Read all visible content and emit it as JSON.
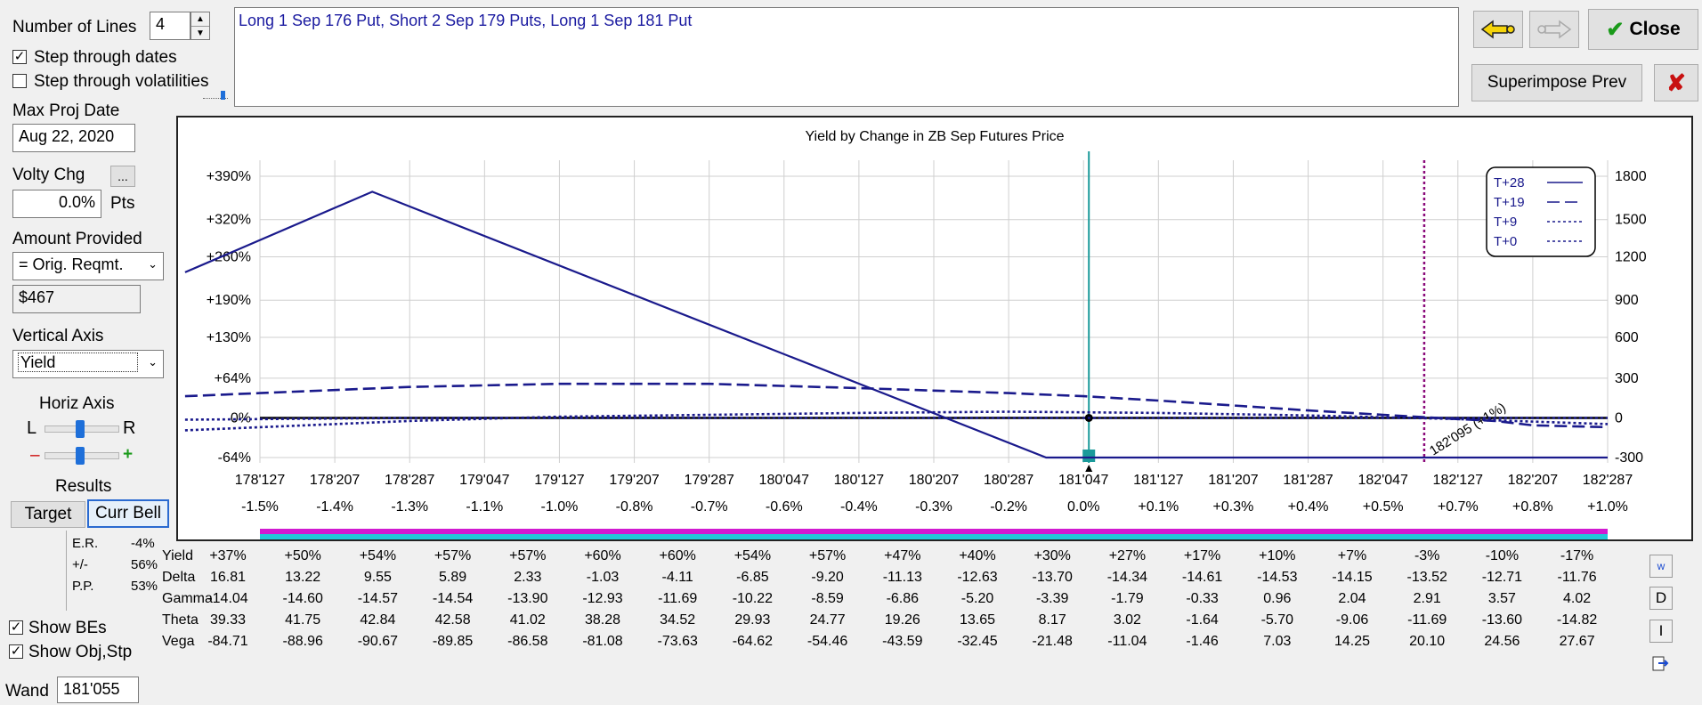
{
  "controls": {
    "number_of_lines_label": "Number of Lines",
    "number_of_lines_value": "4",
    "step_dates_label": "Step through dates",
    "step_dates_checked": true,
    "step_vols_label": "Step through volatilities",
    "step_vols_checked": false,
    "max_proj_date_label": "Max Proj Date",
    "max_proj_date_value": "Aug 22, 2020",
    "volty_chg_label": "Volty Chg",
    "volty_chg_button": "...",
    "volty_chg_value": "0.0%",
    "volty_chg_unit": "Pts",
    "amount_provided_label": "Amount Provided",
    "amount_provided_select": "= Orig. Reqmt.",
    "amount_value": "$467",
    "vertical_axis_label": "Vertical Axis",
    "vertical_axis_select": "Yield",
    "horiz_axis_label": "Horiz Axis",
    "horiz_l": "L",
    "horiz_r": "R",
    "zoom_minus": "–",
    "zoom_plus": "+",
    "results_label": "Results",
    "target_tab": "Target",
    "curr_bell_tab": "Curr Bell",
    "er_label": "E.R.",
    "er_value": "-4%",
    "pm_label": "+/-",
    "pm_value": "56%",
    "pp_label": "P.P.",
    "pp_value": "53%",
    "show_bes_label": "Show BEs",
    "show_bes_checked": true,
    "show_obj_label": "Show Obj,Stp",
    "show_obj_checked": true,
    "wand_label": "Wand",
    "wand_value": "181'055"
  },
  "position_text": "Long 1 Sep 176 Put, Short 2 Sep 179 Puts, Long 1 Sep 181 Put",
  "buttons": {
    "close": "Close",
    "superimpose": "Superimpose Prev",
    "delete_icon": "red-x-icon",
    "back_icon": "yellow-arrow-left-icon",
    "forward_icon": "gray-arrow-right-icon",
    "check_icon": "green-check-icon"
  },
  "side_icons": {
    "w": "w",
    "d": "D",
    "i": "I"
  },
  "colors": {
    "series": "#1a1a8c",
    "vertical_current": "#1a9a9a",
    "vertical_target": "#8a0a7a",
    "bar_top": "#d11ad1",
    "bar_bottom": "#22c8d8"
  },
  "chart_data": {
    "type": "line",
    "title": "Yield by Change in ZB Sep Futures Price",
    "x_ticks": [
      "178'127",
      "178'207",
      "178'287",
      "179'047",
      "179'127",
      "179'207",
      "179'287",
      "180'047",
      "180'127",
      "180'207",
      "180'287",
      "181'047",
      "181'127",
      "181'207",
      "181'287",
      "182'047",
      "182'127",
      "182'207",
      "182'287"
    ],
    "x_pct_ticks": [
      "-1.5%",
      "-1.4%",
      "-1.3%",
      "-1.1%",
      "-1.0%",
      "-0.8%",
      "-0.7%",
      "-0.6%",
      "-0.4%",
      "-0.3%",
      "-0.2%",
      "0.0%",
      "+0.1%",
      "+0.3%",
      "+0.4%",
      "+0.5%",
      "+0.7%",
      "+0.8%",
      "+1.0%"
    ],
    "y_left_ticks": [
      "+390%",
      "+320%",
      "+260%",
      "+190%",
      "+130%",
      "+64%",
      "0%",
      "-64%"
    ],
    "y_right_ticks": [
      "1800",
      "1500",
      "1200",
      "900",
      "600",
      "300",
      "0",
      "-300"
    ],
    "ylim": [
      -64,
      390
    ],
    "legend_position": "top-right",
    "marker_label": "182'095 (+1%)",
    "series": [
      {
        "name": "T+28",
        "style": "solid",
        "x": [
          -1,
          1.5,
          10.5,
          18
        ],
        "y": [
          235,
          365,
          -64,
          -64
        ]
      },
      {
        "name": "T+19",
        "style": "dash",
        "x": [
          -1,
          0,
          2,
          4,
          6,
          8,
          9,
          10,
          11,
          12,
          13,
          14,
          15,
          16,
          16.5,
          17,
          18
        ],
        "y": [
          35,
          40,
          50,
          55,
          55,
          48,
          44,
          40,
          35,
          28,
          20,
          12,
          5,
          -2,
          -5,
          -12,
          -15
        ]
      },
      {
        "name": "T+9",
        "style": "dot",
        "x": [
          -1,
          2,
          4,
          6,
          8,
          10,
          12,
          14,
          16,
          18
        ],
        "y": [
          -20,
          -5,
          2,
          5,
          8,
          10,
          8,
          4,
          -2,
          -10
        ]
      },
      {
        "name": "T+0",
        "style": "dot",
        "x": [
          -1,
          2,
          4,
          6,
          8,
          10,
          12,
          14,
          16,
          18
        ],
        "y": [
          -3,
          0,
          0,
          0,
          0,
          0,
          0,
          0,
          0,
          0
        ]
      }
    ]
  },
  "greeks": {
    "rows": [
      {
        "label": "Yield",
        "values": [
          "+37%",
          "+50%",
          "+54%",
          "+57%",
          "+57%",
          "+60%",
          "+60%",
          "+54%",
          "+57%",
          "+47%",
          "+40%",
          "+30%",
          "+27%",
          "+17%",
          "+10%",
          "+7%",
          "-3%",
          "-10%",
          "-17%"
        ]
      },
      {
        "label": "Delta",
        "values": [
          "16.81",
          "13.22",
          "9.55",
          "5.89",
          "2.33",
          "-1.03",
          "-4.11",
          "-6.85",
          "-9.20",
          "-11.13",
          "-12.63",
          "-13.70",
          "-14.34",
          "-14.61",
          "-14.53",
          "-14.15",
          "-13.52",
          "-12.71",
          "-11.76"
        ]
      },
      {
        "label": "Gamma",
        "values": [
          "-14.04",
          "-14.60",
          "-14.57",
          "-14.54",
          "-13.90",
          "-12.93",
          "-11.69",
          "-10.22",
          "-8.59",
          "-6.86",
          "-5.20",
          "-3.39",
          "-1.79",
          "-0.33",
          "0.96",
          "2.04",
          "2.91",
          "3.57",
          "4.02"
        ]
      },
      {
        "label": "Theta",
        "values": [
          "39.33",
          "41.75",
          "42.84",
          "42.58",
          "41.02",
          "38.28",
          "34.52",
          "29.93",
          "24.77",
          "19.26",
          "13.65",
          "8.17",
          "3.02",
          "-1.64",
          "-5.70",
          "-9.06",
          "-11.69",
          "-13.60",
          "-14.82"
        ]
      },
      {
        "label": "Vega",
        "values": [
          "-84.71",
          "-88.96",
          "-90.67",
          "-89.85",
          "-86.58",
          "-81.08",
          "-73.63",
          "-64.62",
          "-54.46",
          "-43.59",
          "-32.45",
          "-21.48",
          "-11.04",
          "-1.46",
          "7.03",
          "14.25",
          "20.10",
          "24.56",
          "27.67"
        ]
      }
    ]
  }
}
